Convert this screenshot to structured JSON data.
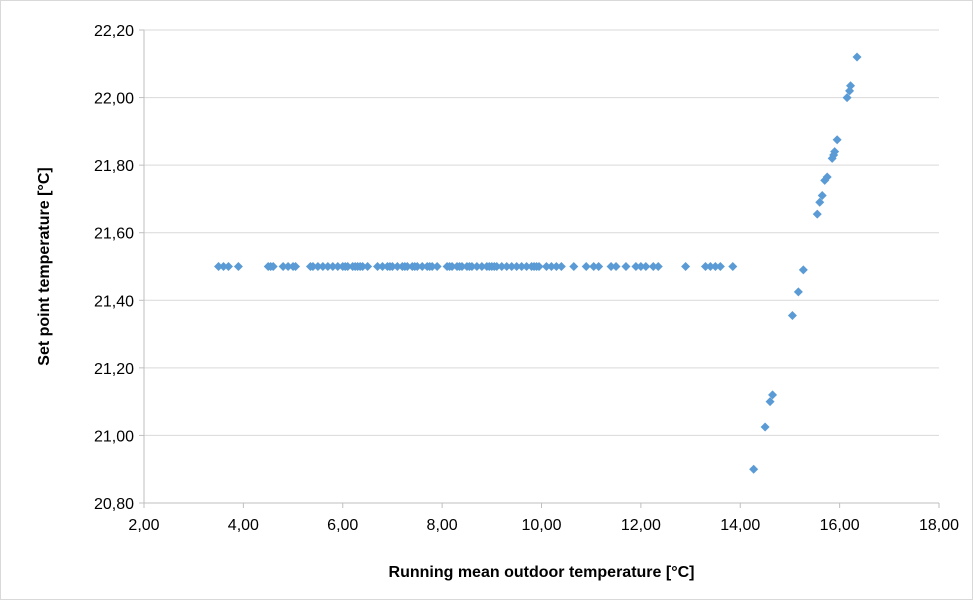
{
  "chart_data": {
    "type": "scatter",
    "title": "",
    "xlabel": "Running mean outdoor temperature [°C]",
    "ylabel": "Set point  temperature [°C]",
    "xlim": [
      2,
      18
    ],
    "ylim": [
      20.8,
      22.2
    ],
    "x_ticks": [
      "2,00",
      "4,00",
      "6,00",
      "8,00",
      "10,00",
      "12,00",
      "14,00",
      "16,00",
      "18,00"
    ],
    "y_ticks": [
      "20,80",
      "21,00",
      "21,20",
      "21,40",
      "21,60",
      "21,80",
      "22,00",
      "22,20"
    ],
    "grid": "horizontal",
    "legend": "none",
    "marker_color": "#5b9bd5",
    "series": [
      {
        "x": [
          3.5,
          3.6,
          3.7,
          3.9,
          4.5,
          4.55,
          4.6,
          4.8,
          4.9,
          5.0,
          5.05,
          5.35,
          5.4,
          5.5,
          5.6,
          5.7,
          5.8,
          5.9,
          6.0,
          6.05,
          6.1,
          6.2,
          6.25,
          6.3,
          6.35,
          6.4,
          6.5,
          6.7,
          6.8,
          6.9,
          6.95,
          7.0,
          7.1,
          7.2,
          7.25,
          7.3,
          7.4,
          7.45,
          7.5,
          7.6,
          7.7,
          7.75,
          7.8,
          7.9,
          8.1,
          8.15,
          8.2,
          8.3,
          8.35,
          8.4,
          8.5,
          8.55,
          8.6,
          8.7,
          8.8,
          8.9,
          8.95,
          9.0,
          9.05,
          9.1,
          9.2,
          9.3,
          9.4,
          9.5,
          9.6,
          9.7,
          9.8,
          9.85,
          9.9,
          9.95,
          10.1,
          10.2,
          10.3,
          10.4,
          10.65,
          10.9,
          11.05,
          11.15,
          11.4,
          11.5,
          11.7,
          11.9,
          12.0,
          12.1,
          12.25,
          12.35,
          12.9,
          13.3,
          13.4,
          13.5,
          13.6,
          13.85,
          14.27,
          14.5,
          14.6,
          14.65,
          15.05,
          15.17,
          15.27,
          15.55,
          15.6,
          15.65,
          15.7,
          15.75,
          15.85,
          15.88,
          15.9,
          15.95,
          16.15,
          16.2,
          16.22,
          16.35
        ],
        "y": [
          21.5,
          21.5,
          21.5,
          21.5,
          21.5,
          21.5,
          21.5,
          21.5,
          21.5,
          21.5,
          21.5,
          21.5,
          21.5,
          21.5,
          21.5,
          21.5,
          21.5,
          21.5,
          21.5,
          21.5,
          21.5,
          21.5,
          21.5,
          21.5,
          21.5,
          21.5,
          21.5,
          21.5,
          21.5,
          21.5,
          21.5,
          21.5,
          21.5,
          21.5,
          21.5,
          21.5,
          21.5,
          21.5,
          21.5,
          21.5,
          21.5,
          21.5,
          21.5,
          21.5,
          21.5,
          21.5,
          21.5,
          21.5,
          21.5,
          21.5,
          21.5,
          21.5,
          21.5,
          21.5,
          21.5,
          21.5,
          21.5,
          21.5,
          21.5,
          21.5,
          21.5,
          21.5,
          21.5,
          21.5,
          21.5,
          21.5,
          21.5,
          21.5,
          21.5,
          21.5,
          21.5,
          21.5,
          21.5,
          21.5,
          21.5,
          21.5,
          21.5,
          21.5,
          21.5,
          21.5,
          21.5,
          21.5,
          21.5,
          21.5,
          21.5,
          21.5,
          21.5,
          21.5,
          21.5,
          21.5,
          21.5,
          21.5,
          20.9,
          21.025,
          21.1,
          21.12,
          21.355,
          21.425,
          21.49,
          21.655,
          21.69,
          21.71,
          21.755,
          21.765,
          21.82,
          21.83,
          21.84,
          21.875,
          22.0,
          22.02,
          22.035,
          22.12
        ]
      }
    ]
  }
}
